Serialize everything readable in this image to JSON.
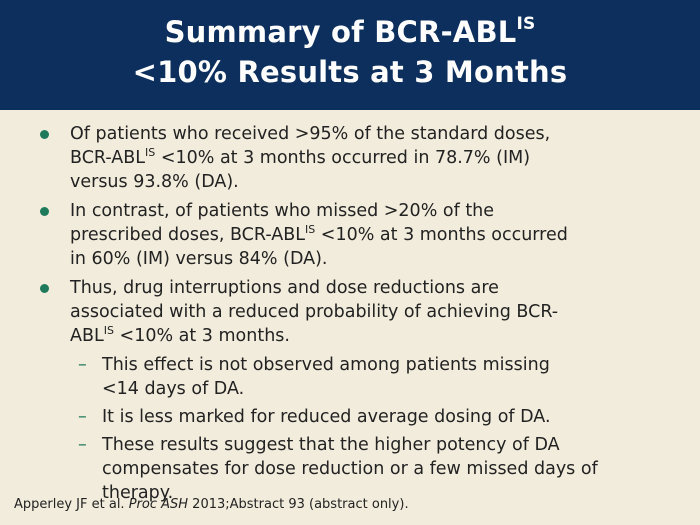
{
  "slide": {
    "title_line1_pre": "Summary of BCR-ABL",
    "title_line1_sup": "IS",
    "title_line2": "<10% Results at 3 Months"
  },
  "bullets": [
    {
      "l1": "Of patients who received >95% of the standard doses,",
      "l2a": "BCR-ABL",
      "sup": "IS",
      "l2b": " <10% at 3 months occurred in 78.7% (IM)",
      "l3": "versus 93.8% (DA)."
    },
    {
      "l1": "In contrast, of patients who missed >20% of the",
      "l2a": "prescribed doses, BCR-ABL",
      "sup": "IS",
      "l2b": " <10% at 3 months occurred",
      "l3": "in 60% (IM) versus 84% (DA)."
    },
    {
      "l1": "Thus, drug interruptions and dose reductions are",
      "l2": "associated with a reduced probability of achieving BCR-",
      "l3a": "ABL",
      "sup": "IS",
      "l3b": " <10% at 3 months."
    }
  ],
  "sub_bullets": [
    {
      "l1": "This effect is not observed among patients missing",
      "l2": "<14 days of DA."
    },
    {
      "l1": "It is less marked for reduced average dosing of DA."
    },
    {
      "l1": "These results suggest that the higher potency of DA",
      "l2": "compensates for dose reduction or a few missed days of",
      "l3": "therapy."
    }
  ],
  "footer": {
    "pre": "Apperley JF et al. ",
    "journal": "Proc ASH",
    "post": " 2013;Abstract 93 (abstract only)."
  }
}
